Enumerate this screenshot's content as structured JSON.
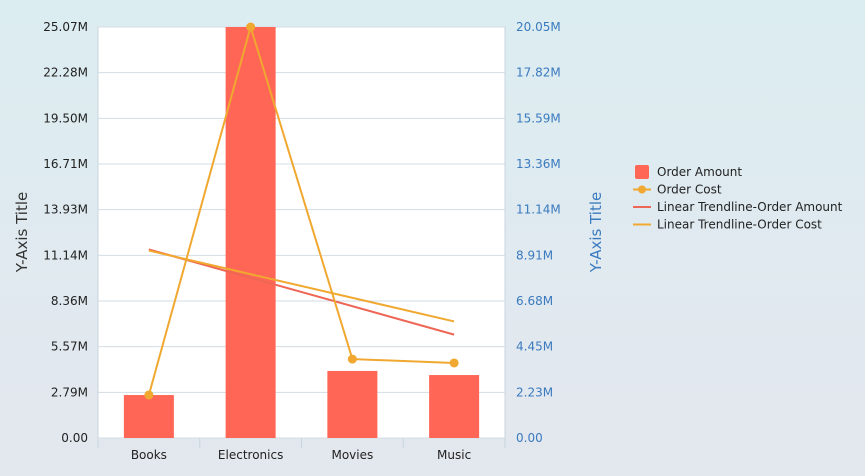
{
  "chart_data": {
    "type": "bar",
    "categories": [
      "Books",
      "Electronics",
      "Movies",
      "Music"
    ],
    "series": [
      {
        "name": "Order Amount",
        "kind": "bar",
        "axis": "left",
        "color": "#ff6655",
        "values": [
          2.62,
          25.07,
          4.09,
          3.84
        ]
      },
      {
        "name": "Order Cost",
        "kind": "line",
        "axis": "right",
        "color": "#f0a830",
        "values": [
          2.1,
          20.05,
          3.85,
          3.66
        ]
      },
      {
        "name": "Linear Trendline-Order Amount",
        "kind": "trend",
        "of": 0,
        "axis": "left",
        "color": "#ee6655"
      },
      {
        "name": "Linear Trendline-Order Cost",
        "kind": "trend",
        "of": 1,
        "axis": "right",
        "color": "#f0a830"
      }
    ],
    "ylabel": "Y-Axis Title",
    "y2label": "Y-Axis Title",
    "ylim": [
      0,
      25.07
    ],
    "y2lim": [
      0,
      20.05
    ],
    "yticks": [
      "0.00",
      "2.79M",
      "5.57M",
      "8.36M",
      "11.14M",
      "13.93M",
      "16.71M",
      "19.50M",
      "22.28M",
      "25.07M"
    ],
    "y2ticks": [
      "0.00",
      "2.23M",
      "4.45M",
      "6.68M",
      "8.91M",
      "11.14M",
      "13.36M",
      "15.59M",
      "17.82M",
      "20.05M"
    ],
    "unit": "M",
    "grid": true,
    "legend": "right"
  }
}
